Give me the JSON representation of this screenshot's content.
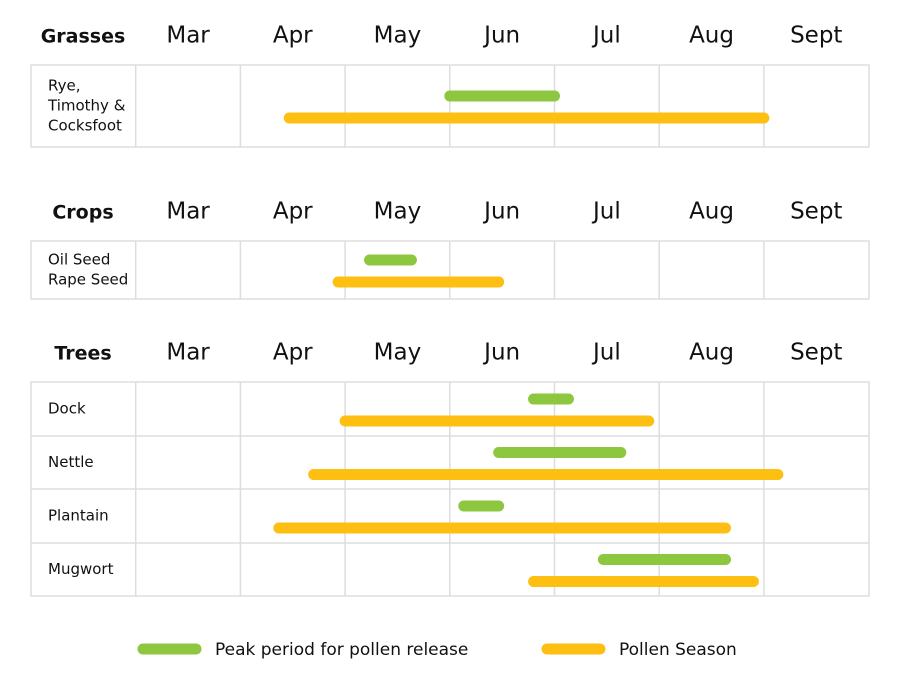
{
  "chart_data": {
    "type": "gantt",
    "months": [
      "Mar",
      "Apr",
      "May",
      "Jun",
      "Jul",
      "Aug",
      "Sept"
    ],
    "colors": {
      "peak": "#8dc63f",
      "season": "#fdbf11",
      "grid": "#dddddd"
    },
    "sections": [
      {
        "title": "Grasses",
        "rows": [
          {
            "label": [
              "Rye,",
              "Timothy &",
              "Cocksfoot"
            ],
            "peak": {
              "start": "Jun 1",
              "end": "Jul 1"
            },
            "season": {
              "start": "Apr 15",
              "end": "Sept 1"
            }
          }
        ]
      },
      {
        "title": "Crops",
        "rows": [
          {
            "label": [
              "Oil Seed",
              "Rape Seed"
            ],
            "peak": {
              "start": "May 8",
              "end": "May 20"
            },
            "season": {
              "start": "Apr 29",
              "end": "Jun 15"
            }
          }
        ]
      },
      {
        "title": "Trees",
        "rows": [
          {
            "label": [
              "Dock"
            ],
            "peak": {
              "start": "Jun 25",
              "end": "Jul 5"
            },
            "season": {
              "start": "May 1",
              "end": "Jul 28"
            }
          },
          {
            "label": [
              "Nettle"
            ],
            "peak": {
              "start": "Jun 15",
              "end": "Jul 20"
            },
            "season": {
              "start": "Apr 22",
              "end": "Sept 5"
            }
          },
          {
            "label": [
              "Plantain"
            ],
            "peak": {
              "start": "Jun 5",
              "end": "Jun 15"
            },
            "season": {
              "start": "Apr 12",
              "end": "Aug 20"
            }
          },
          {
            "label": [
              "Mugwort"
            ],
            "peak": {
              "start": "Jul 15",
              "end": "Aug 20"
            },
            "season": {
              "start": "Jun 25",
              "end": "Aug 28"
            }
          }
        ]
      }
    ],
    "legend": [
      {
        "key": "peak",
        "label": "Peak period for pollen release"
      },
      {
        "key": "season",
        "label": "Pollen Season"
      }
    ]
  }
}
